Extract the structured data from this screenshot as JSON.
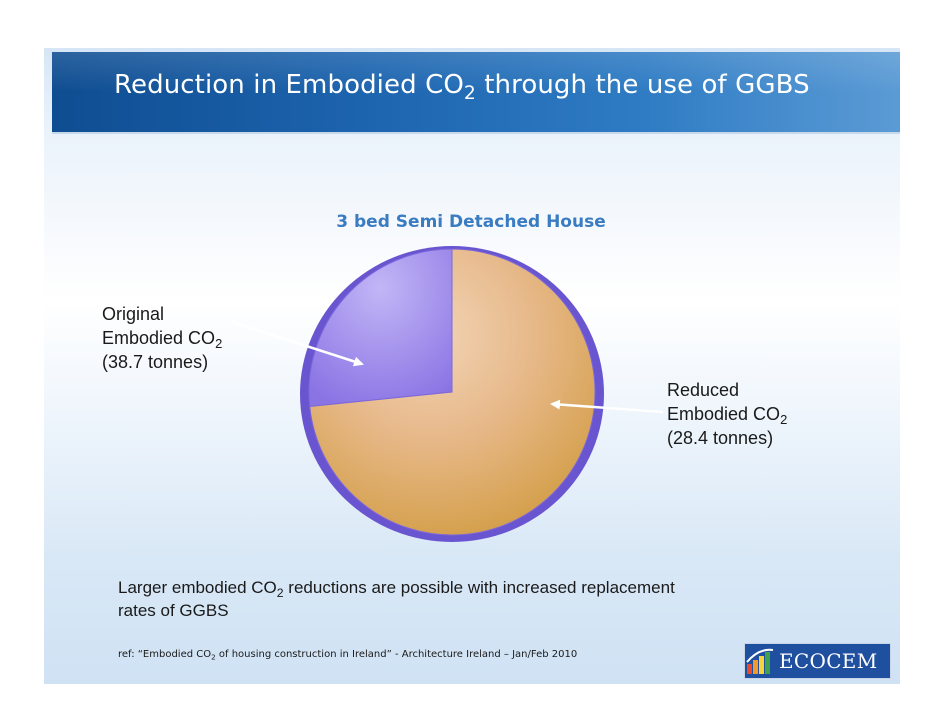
{
  "slide": {
    "title_before": "Reduction in Embodied CO",
    "title_sub": "2",
    "title_after": " through the use of GGBS"
  },
  "chart_data": {
    "type": "pie",
    "title": "3 bed Semi Detached House",
    "slices": [
      {
        "label_lines": [
          "Original",
          "Embodied CO",
          "(38.7 tonnes)"
        ],
        "sub": "2",
        "value": 10.3,
        "color": "#8f7ae6"
      },
      {
        "label_lines": [
          "Reduced",
          "Embodied CO",
          "(28.4 tonnes)"
        ],
        "sub": "2",
        "value": 28.4,
        "color": "#dca45c"
      }
    ]
  },
  "footer": {
    "note_before": "Larger embodied CO",
    "note_sub": "2",
    "note_after": " reductions are possible with increased replacement",
    "note_line2": "rates of GGBS",
    "ref_before": "ref: “Embodied CO",
    "ref_sub": "2",
    "ref_after": " of housing construction in Ireland” - Architecture Ireland – Jan/Feb 2010",
    "logo_text": "ECOCEM"
  },
  "colors": {
    "title_bar": "#1c63ad",
    "chart_title": "#3a7cc2",
    "original_slice": "#8f7ae6",
    "reduced_slice": "#dca45c",
    "logo_bg": "#1f4f9f"
  }
}
